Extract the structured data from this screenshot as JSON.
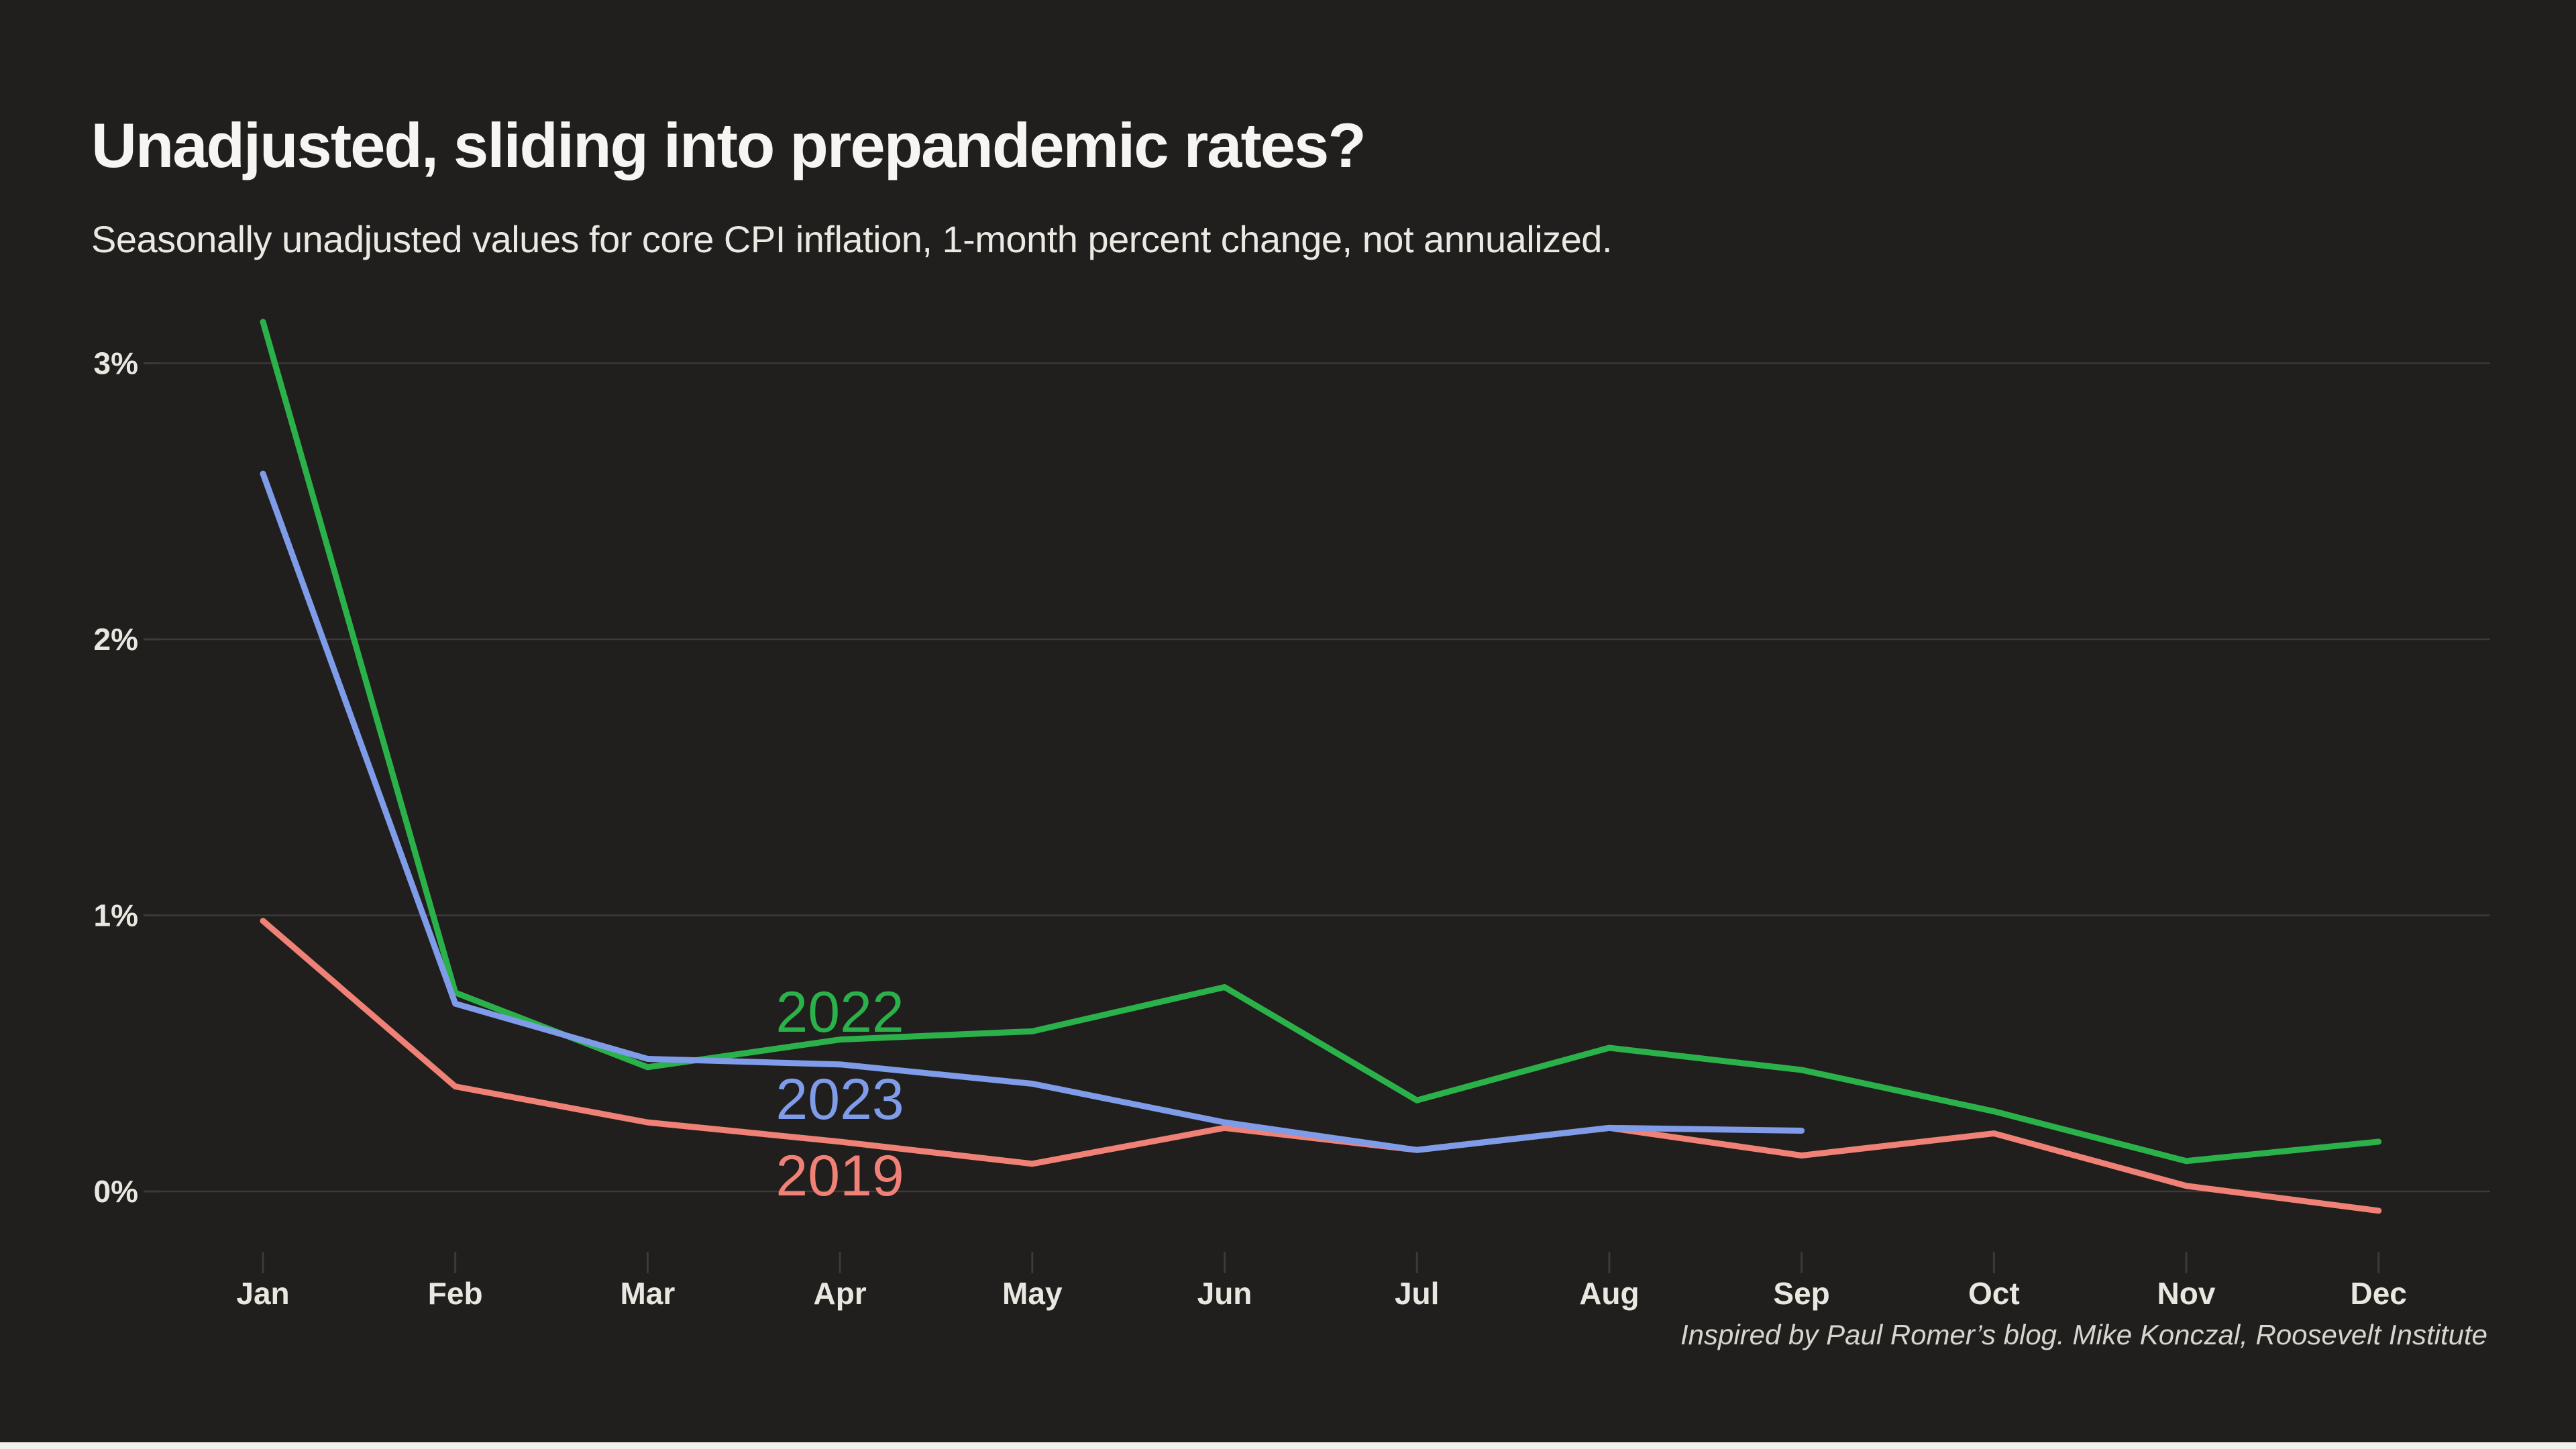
{
  "title": "Unadjusted, sliding into prepandemic rates?",
  "subtitle": "Seasonally unadjusted values for core CPI inflation, 1-month percent change, not annualized.",
  "caption": "Inspired by Paul Romer’s blog. Mike Konczal, Roosevelt Institute",
  "colors": {
    "background": "#211e1e",
    "grid": "#3d3939",
    "title_text": "#f7f5f1",
    "subtitle_text": "#ece9e3",
    "axis_text": "#eae7e1",
    "caption_text": "#d8d5ce",
    "footer_strip": "#f3f0ea",
    "green": "#2bb14a",
    "blue": "#7f9ce9",
    "red": "#ef8176"
  },
  "chart_data": {
    "type": "line",
    "title": "Unadjusted, sliding into prepandemic rates?",
    "subtitle": "Seasonally unadjusted values for core CPI inflation, 1-month percent change, not annualized.",
    "x": [
      "Jan",
      "Feb",
      "Mar",
      "Apr",
      "May",
      "Jun",
      "Jul",
      "Aug",
      "Sep",
      "Oct",
      "Nov",
      "Dec"
    ],
    "xlabel": "",
    "ylabel": "",
    "y_ticks": [
      {
        "label": "3%",
        "value": 3
      },
      {
        "label": "2%",
        "value": 2
      },
      {
        "label": "1%",
        "value": 1
      },
      {
        "label": "0%",
        "value": 0
      }
    ],
    "ylim": [
      -0.25,
      3.4
    ],
    "grid": true,
    "legend_position": "inline",
    "series": [
      {
        "name": "2019",
        "color_key": "red",
        "values": [
          0.98,
          0.38,
          0.25,
          0.18,
          0.1,
          0.23,
          0.15,
          0.23,
          0.13,
          0.21,
          0.02,
          -0.07
        ]
      },
      {
        "name": "2022",
        "color_key": "green",
        "values": [
          3.15,
          0.72,
          0.45,
          0.55,
          0.58,
          0.74,
          0.33,
          0.52,
          0.44,
          0.29,
          0.11,
          0.18
        ]
      },
      {
        "name": "2023",
        "color_key": "blue",
        "values": [
          2.6,
          0.68,
          0.48,
          0.46,
          0.39,
          0.25,
          0.15,
          0.23,
          0.22,
          null,
          null,
          null
        ]
      }
    ]
  }
}
